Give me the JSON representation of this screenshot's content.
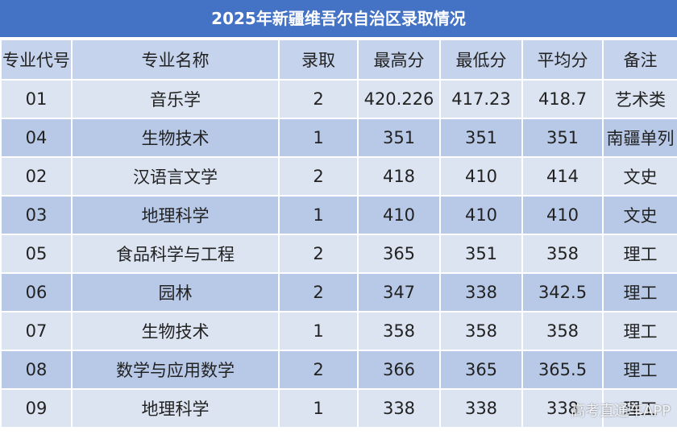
{
  "header": {
    "title": "2025年新疆维吾尔自治区录取情况"
  },
  "table": {
    "columns": [
      "专业代号",
      "专业名称",
      "录取",
      "最高分",
      "最低分",
      "平均分",
      "备注"
    ],
    "rows": [
      [
        "01",
        "音乐学",
        "2",
        "420.226",
        "417.23",
        "418.7",
        "艺术类"
      ],
      [
        "04",
        "生物技术",
        "1",
        "351",
        "351",
        "351",
        "南疆单列"
      ],
      [
        "02",
        "汉语言文学",
        "2",
        "418",
        "410",
        "414",
        "文史"
      ],
      [
        "03",
        "地理科学",
        "1",
        "410",
        "410",
        "410",
        "文史"
      ],
      [
        "05",
        "食品科学与工程",
        "2",
        "365",
        "351",
        "358",
        "理工"
      ],
      [
        "06",
        "园林",
        "2",
        "347",
        "338",
        "342.5",
        "理工"
      ],
      [
        "07",
        "生物技术",
        "1",
        "358",
        "358",
        "358",
        "理工"
      ],
      [
        "08",
        "数学与应用数学",
        "2",
        "366",
        "365",
        "365.5",
        "理工"
      ],
      [
        "09",
        "地理科学",
        "1",
        "338",
        "338",
        "338",
        "理工"
      ]
    ]
  },
  "watermark": "高考直通车APP"
}
